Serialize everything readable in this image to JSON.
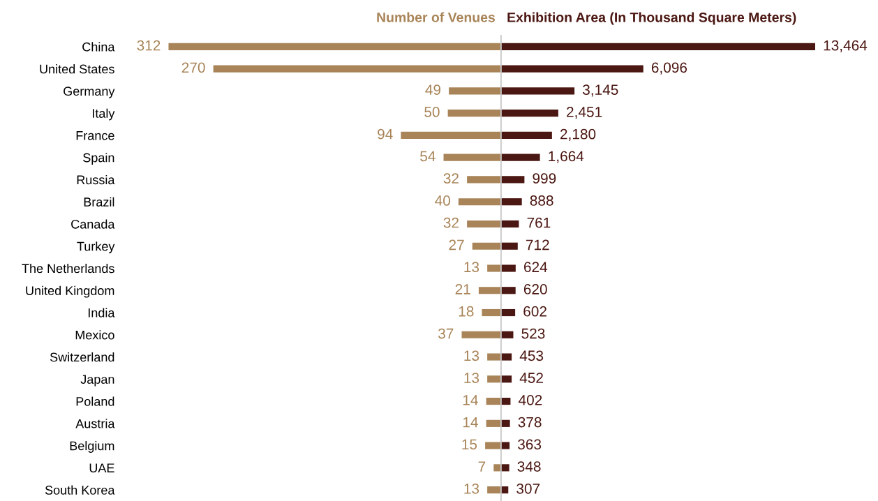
{
  "chart_data": [
    {
      "type": "bar",
      "orientation": "horizontal",
      "title": "Number of Venues",
      "color": "#a88458",
      "categories": [
        "China",
        "United States",
        "Germany",
        "Italy",
        "France",
        "Spain",
        "Russia",
        "Brazil",
        "Canada",
        "Turkey",
        "The Netherlands",
        "United Kingdom",
        "India",
        "Mexico",
        "Switzerland",
        "Japan",
        "Poland",
        "Austria",
        "Belgium",
        "UAE",
        "South Korea"
      ],
      "values": [
        312,
        270,
        49,
        50,
        94,
        54,
        32,
        40,
        32,
        27,
        13,
        21,
        18,
        37,
        13,
        13,
        14,
        14,
        15,
        7,
        13
      ],
      "value_labels": [
        "312",
        "270",
        "49",
        "50",
        "94",
        "54",
        "32",
        "40",
        "32",
        "27",
        "13",
        "21",
        "18",
        "37",
        "13",
        "13",
        "14",
        "14",
        "15",
        "7",
        "13"
      ],
      "tick_labels": "y"
    },
    {
      "type": "bar",
      "orientation": "horizontal",
      "title": "Exhibition Area (In Thousand Square Meters)",
      "color": "#4b1712",
      "categories": [
        null,
        null,
        null,
        null,
        null,
        null,
        null,
        null,
        null,
        null,
        null,
        null,
        null,
        null,
        null,
        null,
        null,
        null,
        null,
        null,
        null
      ],
      "values": [
        13464,
        6096,
        3145,
        2451,
        2180,
        1664,
        999,
        888,
        761,
        712,
        624,
        620,
        602,
        523,
        453,
        452,
        402,
        378,
        363,
        348,
        307
      ],
      "value_labels": [
        "13,464",
        "6,096",
        "3,145",
        "2,451",
        "2,180",
        "1,664",
        "999",
        "888",
        "761",
        "712",
        "624",
        "620",
        "602",
        "523",
        "453",
        "452",
        "402",
        "378",
        "363",
        "348",
        "307"
      ],
      "tick_labels": false
    }
  ]
}
